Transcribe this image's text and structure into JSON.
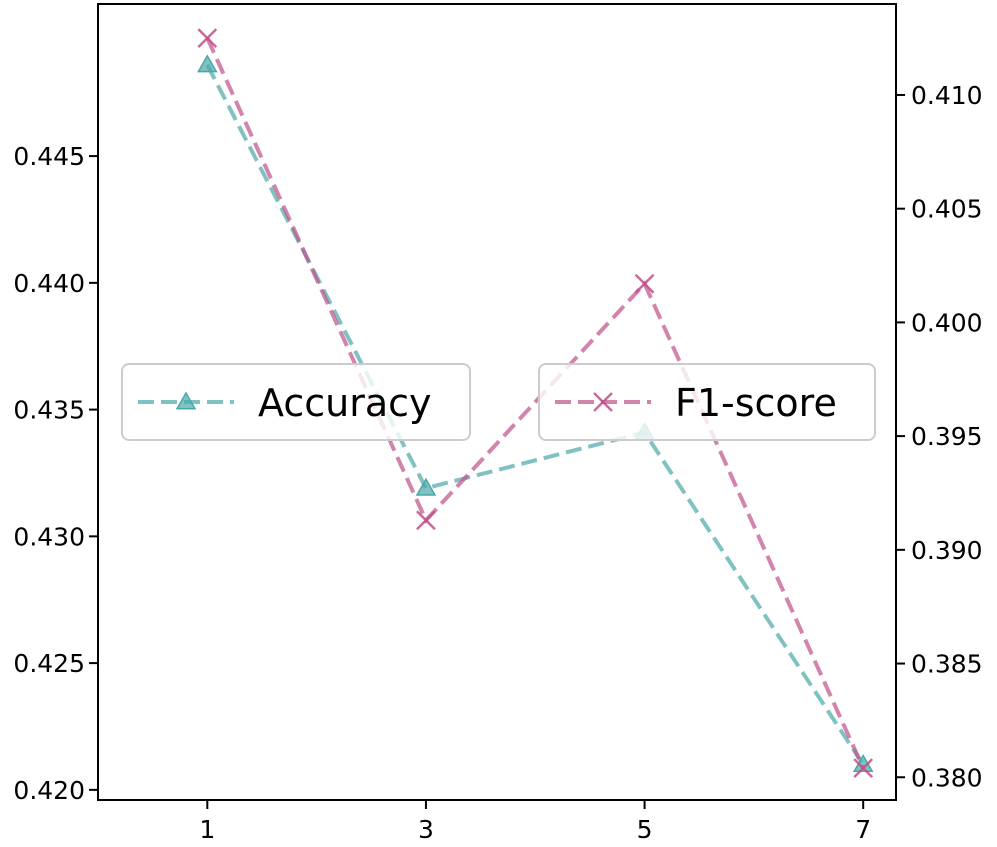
{
  "chart_data": {
    "type": "line",
    "x": [
      1,
      3,
      5,
      7
    ],
    "x_ticks": [
      "1",
      "3",
      "5",
      "7"
    ],
    "xlim": [
      0.0,
      7.3
    ],
    "series": [
      {
        "name": "Accuracy",
        "axis": "left",
        "values": [
          0.4486,
          0.4319,
          0.4341,
          0.421
        ],
        "color": "#4aa8a8",
        "marker": "triangle",
        "linestyle": "dashed"
      },
      {
        "name": "F1-score",
        "axis": "right",
        "values": [
          0.4125,
          0.3913,
          0.4017,
          0.3804
        ],
        "color": "#c0508a",
        "marker": "x",
        "linestyle": "dashed"
      }
    ],
    "y_left": {
      "ylim": [
        0.4196,
        0.451
      ],
      "ticks": [
        0.42,
        0.425,
        0.43,
        0.435,
        0.44,
        0.445
      ],
      "tick_labels": [
        "0.420",
        "0.425",
        "0.430",
        "0.435",
        "0.440",
        "0.445"
      ]
    },
    "y_right": {
      "ylim": [
        0.379,
        0.414
      ],
      "ticks": [
        0.38,
        0.385,
        0.39,
        0.395,
        0.4,
        0.405,
        0.41
      ],
      "tick_labels": [
        "0.380",
        "0.385",
        "0.390",
        "0.395",
        "0.400",
        "0.405",
        "0.410"
      ]
    },
    "legends": [
      {
        "series": "Accuracy",
        "placement": "center-left"
      },
      {
        "series": "F1-score",
        "placement": "center-right"
      }
    ],
    "grid": false
  }
}
